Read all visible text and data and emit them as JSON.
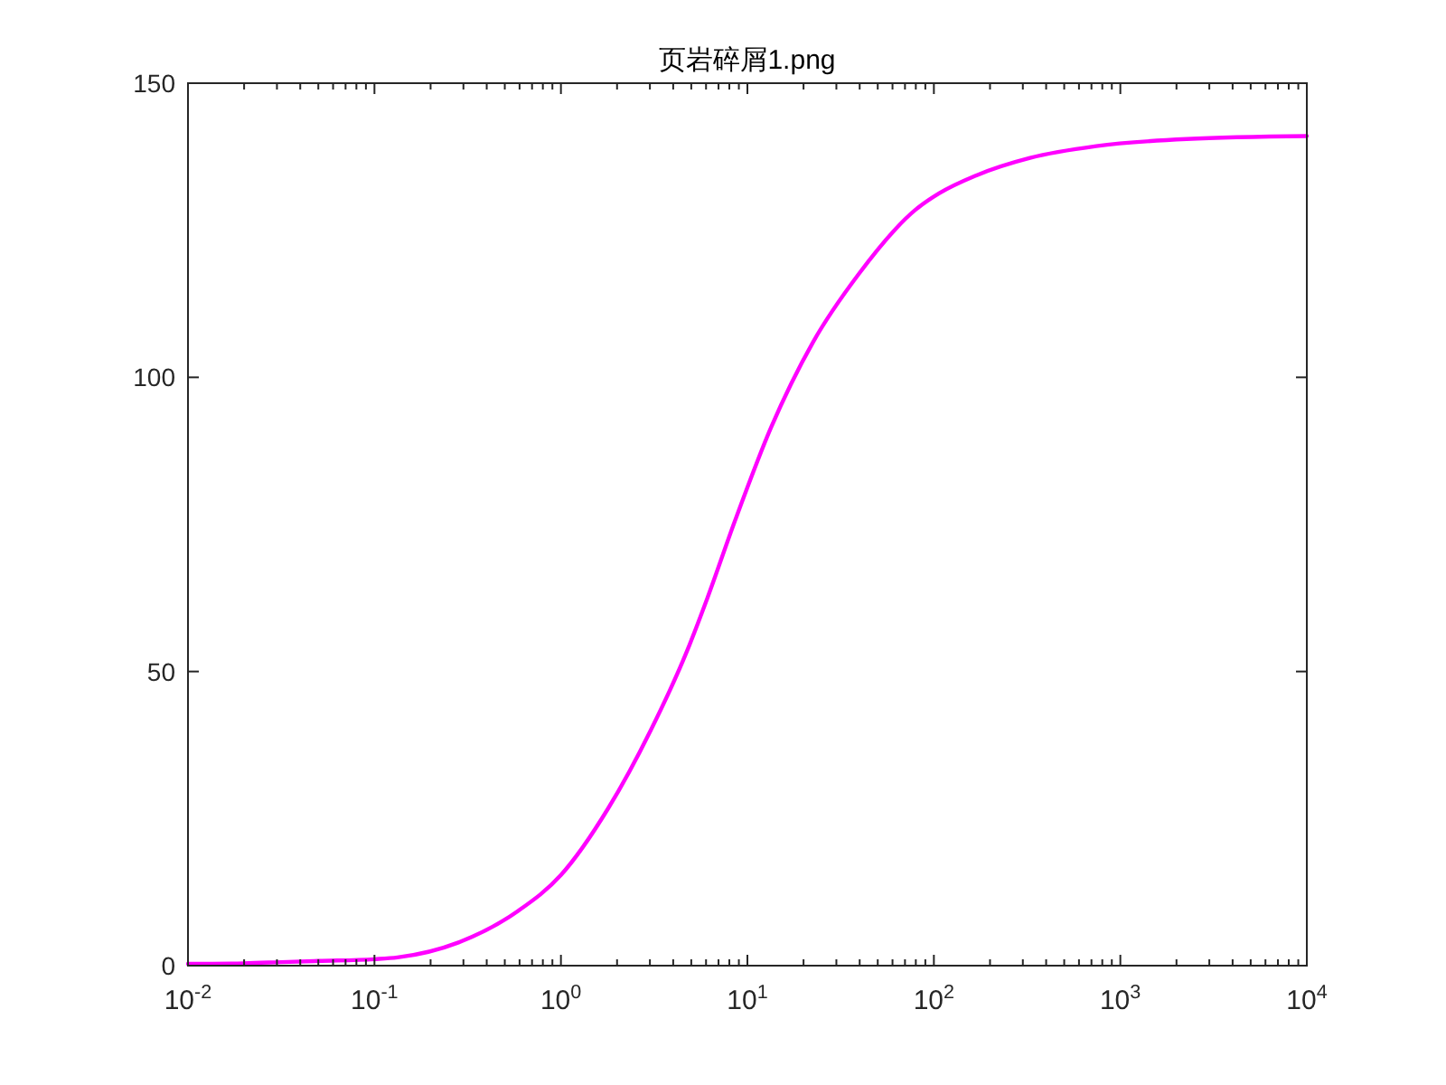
{
  "chart_data": {
    "type": "line",
    "title": "页岩碎屑1.png",
    "x": [
      0.01,
      0.02,
      0.0316,
      0.05,
      0.1,
      0.133,
      0.28,
      0.589,
      1,
      1.79,
      3.03,
      4.72,
      6.12,
      8.55,
      13.4,
      22.5,
      39.4,
      79.8,
      107,
      168,
      328,
      742,
      2265,
      10000
    ],
    "series": [
      {
        "color": "#ff00ff",
        "values": [
          0.3,
          0.4,
          0.6,
          0.8,
          1.1,
          1.4,
          3.9,
          9.3,
          15.4,
          26.7,
          40,
          53.3,
          62.6,
          75.5,
          91.5,
          106,
          117.5,
          128.5,
          131.3,
          134.3,
          137.3,
          139.3,
          140.5,
          141
        ]
      }
    ],
    "xlim": [
      0.01,
      10000
    ],
    "ylim": [
      0,
      150
    ],
    "xticks": [
      {
        "value": 0.01,
        "label": "10$^{-2}$"
      },
      {
        "value": 0.02,
        "label": null
      },
      {
        "value": 0.03,
        "label": null
      },
      {
        "value": 0.04,
        "label": null
      },
      {
        "value": 0.05,
        "label": null
      },
      {
        "value": 0.06,
        "label": null
      },
      {
        "value": 0.07,
        "label": null
      },
      {
        "value": 0.08,
        "label": null
      },
      {
        "value": 0.09,
        "label": null
      },
      {
        "value": 0.1,
        "label": "10$^{-1}$"
      },
      {
        "value": 0.2,
        "label": null
      },
      {
        "value": 0.3,
        "label": null
      },
      {
        "value": 0.4,
        "label": null
      },
      {
        "value": 0.5,
        "label": null
      },
      {
        "value": 0.6,
        "label": null
      },
      {
        "value": 0.7,
        "label": null
      },
      {
        "value": 0.8,
        "label": null
      },
      {
        "value": 0.9,
        "label": null
      },
      {
        "value": 1,
        "label": "10$^{0}$"
      },
      {
        "value": 2,
        "label": null
      },
      {
        "value": 3,
        "label": null
      },
      {
        "value": 4,
        "label": null
      },
      {
        "value": 5,
        "label": null
      },
      {
        "value": 6,
        "label": null
      },
      {
        "value": 7,
        "label": null
      },
      {
        "value": 8,
        "label": null
      },
      {
        "value": 9,
        "label": null
      },
      {
        "value": 10,
        "label": "10$^{1}$"
      },
      {
        "value": 20,
        "label": null
      },
      {
        "value": 30,
        "label": null
      },
      {
        "value": 40,
        "label": null
      },
      {
        "value": 50,
        "label": null
      },
      {
        "value": 60,
        "label": null
      },
      {
        "value": 70,
        "label": null
      },
      {
        "value": 80,
        "label": null
      },
      {
        "value": 90,
        "label": null
      },
      {
        "value": 100,
        "label": "10$^{2}$"
      },
      {
        "value": 200,
        "label": null
      },
      {
        "value": 300,
        "label": null
      },
      {
        "value": 400,
        "label": null
      },
      {
        "value": 500,
        "label": null
      },
      {
        "value": 600,
        "label": null
      },
      {
        "value": 700,
        "label": null
      },
      {
        "value": 800,
        "label": null
      },
      {
        "value": 900,
        "label": null
      },
      {
        "value": 1000,
        "label": "10$^{3}$"
      },
      {
        "value": 2000,
        "label": null
      },
      {
        "value": 3000,
        "label": null
      },
      {
        "value": 4000,
        "label": null
      },
      {
        "value": 5000,
        "label": null
      },
      {
        "value": 6000,
        "label": null
      },
      {
        "value": 7000,
        "label": null
      },
      {
        "value": 8000,
        "label": null
      },
      {
        "value": 9000,
        "label": null
      },
      {
        "value": 10000,
        "label": "10$^{4}$"
      }
    ],
    "yticks": [
      0,
      50,
      100,
      150
    ],
    "log": "x"
  }
}
